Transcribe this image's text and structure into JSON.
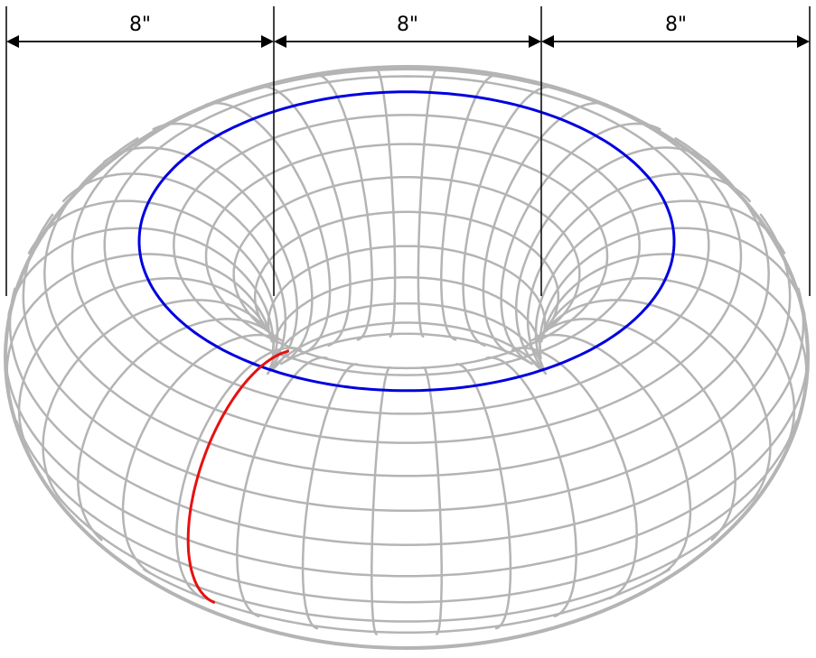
{
  "dimensions": [
    {
      "label": "8\""
    },
    {
      "label": "8\""
    },
    {
      "label": "8\""
    }
  ],
  "colors": {
    "mesh": "#b4b4b4",
    "top_circle": "#0000e0",
    "meridian_highlight": "#e81010",
    "dimension": "#000000"
  },
  "torus": {
    "major_radius_in": 8,
    "minor_radius_in": 4
  }
}
